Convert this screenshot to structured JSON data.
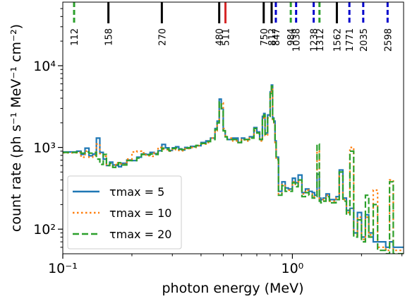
{
  "chart_data": {
    "type": "line",
    "title": "",
    "xlabel": "photon energy (MeV)",
    "ylabel": "count rate (ph s⁻¹ MeV⁻¹ cm⁻²)",
    "xscale": "log",
    "yscale": "log",
    "xlim": [
      0.1,
      3.05
    ],
    "ylim": [
      50,
      60000
    ],
    "x_ticks": [
      {
        "value": 0.1,
        "label": "10⁻¹"
      },
      {
        "value": 1.0,
        "label": "10⁰"
      }
    ],
    "y_ticks": [
      {
        "value": 100,
        "label": "10²"
      },
      {
        "value": 1000,
        "label": "10³"
      },
      {
        "value": 10000,
        "label": "10⁴"
      }
    ],
    "grid": false,
    "legend_position": "lower-left",
    "line_markers": [
      {
        "energy_keV": 112,
        "label": "112",
        "color": "#2ca02c",
        "style": "dashed"
      },
      {
        "energy_keV": 158,
        "label": "158",
        "color": "#000000",
        "style": "solid"
      },
      {
        "energy_keV": 270,
        "label": "270",
        "color": "#000000",
        "style": "solid"
      },
      {
        "energy_keV": 480,
        "label": "480",
        "color": "#000000",
        "style": "solid"
      },
      {
        "energy_keV": 511,
        "label": "511",
        "color": "#d62728",
        "style": "solid"
      },
      {
        "energy_keV": 750,
        "label": "750",
        "color": "#000000",
        "style": "solid"
      },
      {
        "energy_keV": 812,
        "label": "812",
        "color": "#000000",
        "style": "solid"
      },
      {
        "energy_keV": 847,
        "label": "847",
        "color": "#0000cc",
        "style": "dashed"
      },
      {
        "energy_keV": 984,
        "label": "984",
        "color": "#2ca02c",
        "style": "dashed"
      },
      {
        "energy_keV": 1038,
        "label": "1038",
        "color": "#0000cc",
        "style": "dashed"
      },
      {
        "energy_keV": 1238,
        "label": "1238",
        "color": "#0000cc",
        "style": "dashed"
      },
      {
        "energy_keV": 1312,
        "label": "1312",
        "color": "#2ca02c",
        "style": "dashed"
      },
      {
        "energy_keV": 1562,
        "label": "1562",
        "color": "#000000",
        "style": "solid"
      },
      {
        "energy_keV": 1771,
        "label": "1771",
        "color": "#0000cc",
        "style": "dashed"
      },
      {
        "energy_keV": 2035,
        "label": "2035",
        "color": "#0000cc",
        "style": "dashed"
      },
      {
        "energy_keV": 2598,
        "label": "2598",
        "color": "#0000cc",
        "style": "dashed"
      }
    ],
    "series": [
      {
        "name": "τmax = 5",
        "color": "#1f77b4",
        "style": "solid",
        "x": [
          0.1,
          0.115,
          0.12,
          0.125,
          0.13,
          0.135,
          0.14,
          0.145,
          0.15,
          0.155,
          0.16,
          0.165,
          0.17,
          0.175,
          0.18,
          0.19,
          0.2,
          0.21,
          0.22,
          0.23,
          0.24,
          0.25,
          0.26,
          0.27,
          0.28,
          0.29,
          0.3,
          0.31,
          0.32,
          0.33,
          0.34,
          0.35,
          0.36,
          0.38,
          0.4,
          0.42,
          0.44,
          0.46,
          0.47,
          0.48,
          0.49,
          0.5,
          0.51,
          0.52,
          0.55,
          0.58,
          0.6,
          0.62,
          0.65,
          0.68,
          0.7,
          0.72,
          0.74,
          0.75,
          0.76,
          0.78,
          0.8,
          0.81,
          0.82,
          0.83,
          0.84,
          0.85,
          0.87,
          0.9,
          0.93,
          0.96,
          1.0,
          1.03,
          1.06,
          1.1,
          1.14,
          1.18,
          1.22,
          1.25,
          1.28,
          1.31,
          1.33,
          1.36,
          1.4,
          1.45,
          1.5,
          1.55,
          1.6,
          1.66,
          1.72,
          1.78,
          1.85,
          1.92,
          2.0,
          2.08,
          2.15,
          2.25,
          2.35,
          2.45,
          2.55,
          2.65,
          2.75
        ],
        "y": [
          880,
          900,
          820,
          980,
          790,
          830,
          1300,
          870,
          720,
          600,
          660,
          610,
          600,
          580,
          640,
          700,
          690,
          760,
          830,
          820,
          870,
          840,
          910,
          1090,
          990,
          920,
          990,
          1020,
          960,
          930,
          1000,
          980,
          1030,
          1050,
          1150,
          1200,
          1300,
          1700,
          2100,
          3900,
          3000,
          1600,
          1350,
          1250,
          1300,
          1150,
          1300,
          1250,
          1350,
          1750,
          1550,
          1250,
          2400,
          2600,
          1500,
          2500,
          4800,
          5800,
          2300,
          2100,
          1200,
          760,
          290,
          380,
          320,
          310,
          420,
          370,
          460,
          280,
          310,
          290,
          280,
          260,
          470,
          240,
          230,
          240,
          270,
          230,
          230,
          250,
          530,
          240,
          170,
          180,
          90,
          160,
          80,
          150,
          90,
          70,
          70,
          70,
          60,
          70,
          60
        ]
      },
      {
        "name": "τmax = 10",
        "color": "#ff7f0e",
        "style": "dotted",
        "x": [
          0.1,
          0.115,
          0.12,
          0.125,
          0.13,
          0.135,
          0.14,
          0.145,
          0.15,
          0.155,
          0.16,
          0.165,
          0.17,
          0.175,
          0.18,
          0.19,
          0.2,
          0.21,
          0.22,
          0.23,
          0.24,
          0.25,
          0.26,
          0.27,
          0.28,
          0.29,
          0.3,
          0.31,
          0.32,
          0.33,
          0.34,
          0.35,
          0.36,
          0.38,
          0.4,
          0.42,
          0.44,
          0.46,
          0.47,
          0.48,
          0.49,
          0.5,
          0.51,
          0.52,
          0.55,
          0.58,
          0.6,
          0.62,
          0.65,
          0.68,
          0.7,
          0.72,
          0.74,
          0.75,
          0.76,
          0.78,
          0.8,
          0.81,
          0.82,
          0.83,
          0.84,
          0.85,
          0.87,
          0.9,
          0.93,
          0.96,
          1.0,
          1.03,
          1.06,
          1.1,
          1.14,
          1.18,
          1.22,
          1.25,
          1.28,
          1.31,
          1.33,
          1.36,
          1.4,
          1.45,
          1.5,
          1.55,
          1.6,
          1.66,
          1.72,
          1.78,
          1.85,
          1.92,
          2.0,
          2.08,
          2.15,
          2.25,
          2.35,
          2.45,
          2.55,
          2.65,
          2.75
        ],
        "y": [
          860,
          870,
          760,
          900,
          760,
          800,
          1100,
          840,
          780,
          620,
          610,
          590,
          650,
          630,
          620,
          720,
          880,
          900,
          860,
          790,
          780,
          860,
          1000,
          950,
          940,
          900,
          960,
          940,
          920,
          910,
          960,
          970,
          1000,
          1050,
          1100,
          1150,
          1300,
          1600,
          2000,
          3300,
          3500,
          1700,
          1400,
          1300,
          1200,
          1150,
          1250,
          1200,
          1300,
          1600,
          1450,
          1200,
          2200,
          2400,
          1400,
          2300,
          4400,
          5500,
          2200,
          2000,
          1150,
          700,
          270,
          350,
          300,
          300,
          380,
          340,
          380,
          270,
          300,
          270,
          250,
          250,
          900,
          220,
          220,
          230,
          260,
          220,
          220,
          240,
          450,
          230,
          160,
          1000,
          85,
          140,
          75,
          140,
          85,
          300,
          60,
          60,
          55,
          400,
          55
        ]
      },
      {
        "name": "τmax = 20",
        "color": "#2ca02c",
        "style": "dashed",
        "x": [
          0.1,
          0.115,
          0.12,
          0.125,
          0.13,
          0.135,
          0.14,
          0.145,
          0.15,
          0.155,
          0.16,
          0.165,
          0.17,
          0.175,
          0.18,
          0.19,
          0.2,
          0.21,
          0.22,
          0.23,
          0.24,
          0.25,
          0.26,
          0.27,
          0.28,
          0.29,
          0.3,
          0.31,
          0.32,
          0.33,
          0.34,
          0.35,
          0.36,
          0.38,
          0.4,
          0.42,
          0.44,
          0.46,
          0.47,
          0.48,
          0.49,
          0.5,
          0.51,
          0.52,
          0.55,
          0.58,
          0.6,
          0.62,
          0.65,
          0.68,
          0.7,
          0.72,
          0.74,
          0.75,
          0.76,
          0.78,
          0.8,
          0.81,
          0.82,
          0.83,
          0.84,
          0.85,
          0.87,
          0.9,
          0.93,
          0.96,
          1.0,
          1.03,
          1.06,
          1.1,
          1.14,
          1.18,
          1.22,
          1.25,
          1.28,
          1.31,
          1.33,
          1.36,
          1.4,
          1.45,
          1.5,
          1.55,
          1.6,
          1.66,
          1.72,
          1.78,
          1.85,
          1.92,
          2.0,
          2.08,
          2.15,
          2.25,
          2.35,
          2.45,
          2.55,
          2.65,
          2.75
        ],
        "y": [
          870,
          880,
          850,
          880,
          850,
          870,
          720,
          620,
          820,
          600,
          640,
          570,
          620,
          650,
          610,
          690,
          690,
          740,
          820,
          810,
          830,
          820,
          900,
          980,
          960,
          910,
          970,
          990,
          950,
          940,
          980,
          990,
          1020,
          1060,
          1120,
          1180,
          1250,
          1650,
          2000,
          3600,
          2800,
          1600,
          1350,
          1250,
          1250,
          1150,
          1250,
          1250,
          1300,
          1700,
          1500,
          1250,
          2300,
          2500,
          1450,
          2400,
          4600,
          5600,
          2250,
          2050,
          1200,
          720,
          260,
          340,
          290,
          290,
          370,
          330,
          400,
          250,
          280,
          260,
          240,
          250,
          1100,
          220,
          210,
          220,
          250,
          210,
          210,
          230,
          500,
          220,
          150,
          900,
          80,
          130,
          70,
          260,
          80,
          200,
          55,
          55,
          50,
          380,
          50
        ]
      }
    ]
  }
}
